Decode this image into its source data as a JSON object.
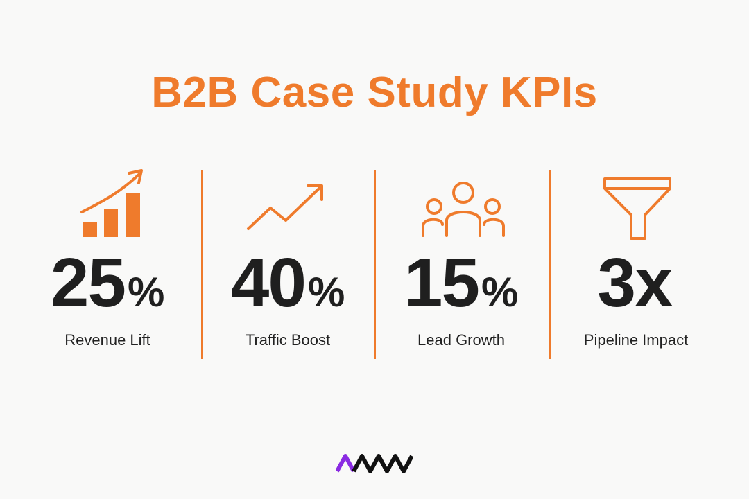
{
  "title": "B2B Case Study KPIs",
  "colors": {
    "accent": "#ef7b2c",
    "text_dark": "#1f1f1f",
    "background": "#f9f9f8",
    "logo_purple": "#8a2be2",
    "logo_black": "#111111"
  },
  "kpis": [
    {
      "value": "25",
      "unit": "%",
      "label": "Revenue Lift",
      "icon": "rising-bar-chart-icon"
    },
    {
      "value": "40",
      "unit": "%",
      "label": "Traffic Boost",
      "icon": "trend-arrow-icon"
    },
    {
      "value": "15",
      "unit": "%",
      "label": "Lead Growth",
      "icon": "people-group-icon"
    },
    {
      "value": "3x",
      "unit": "",
      "label": "Pipeline Impact",
      "icon": "funnel-icon"
    }
  ],
  "logo": {
    "icon": "brand-logo-icon"
  }
}
